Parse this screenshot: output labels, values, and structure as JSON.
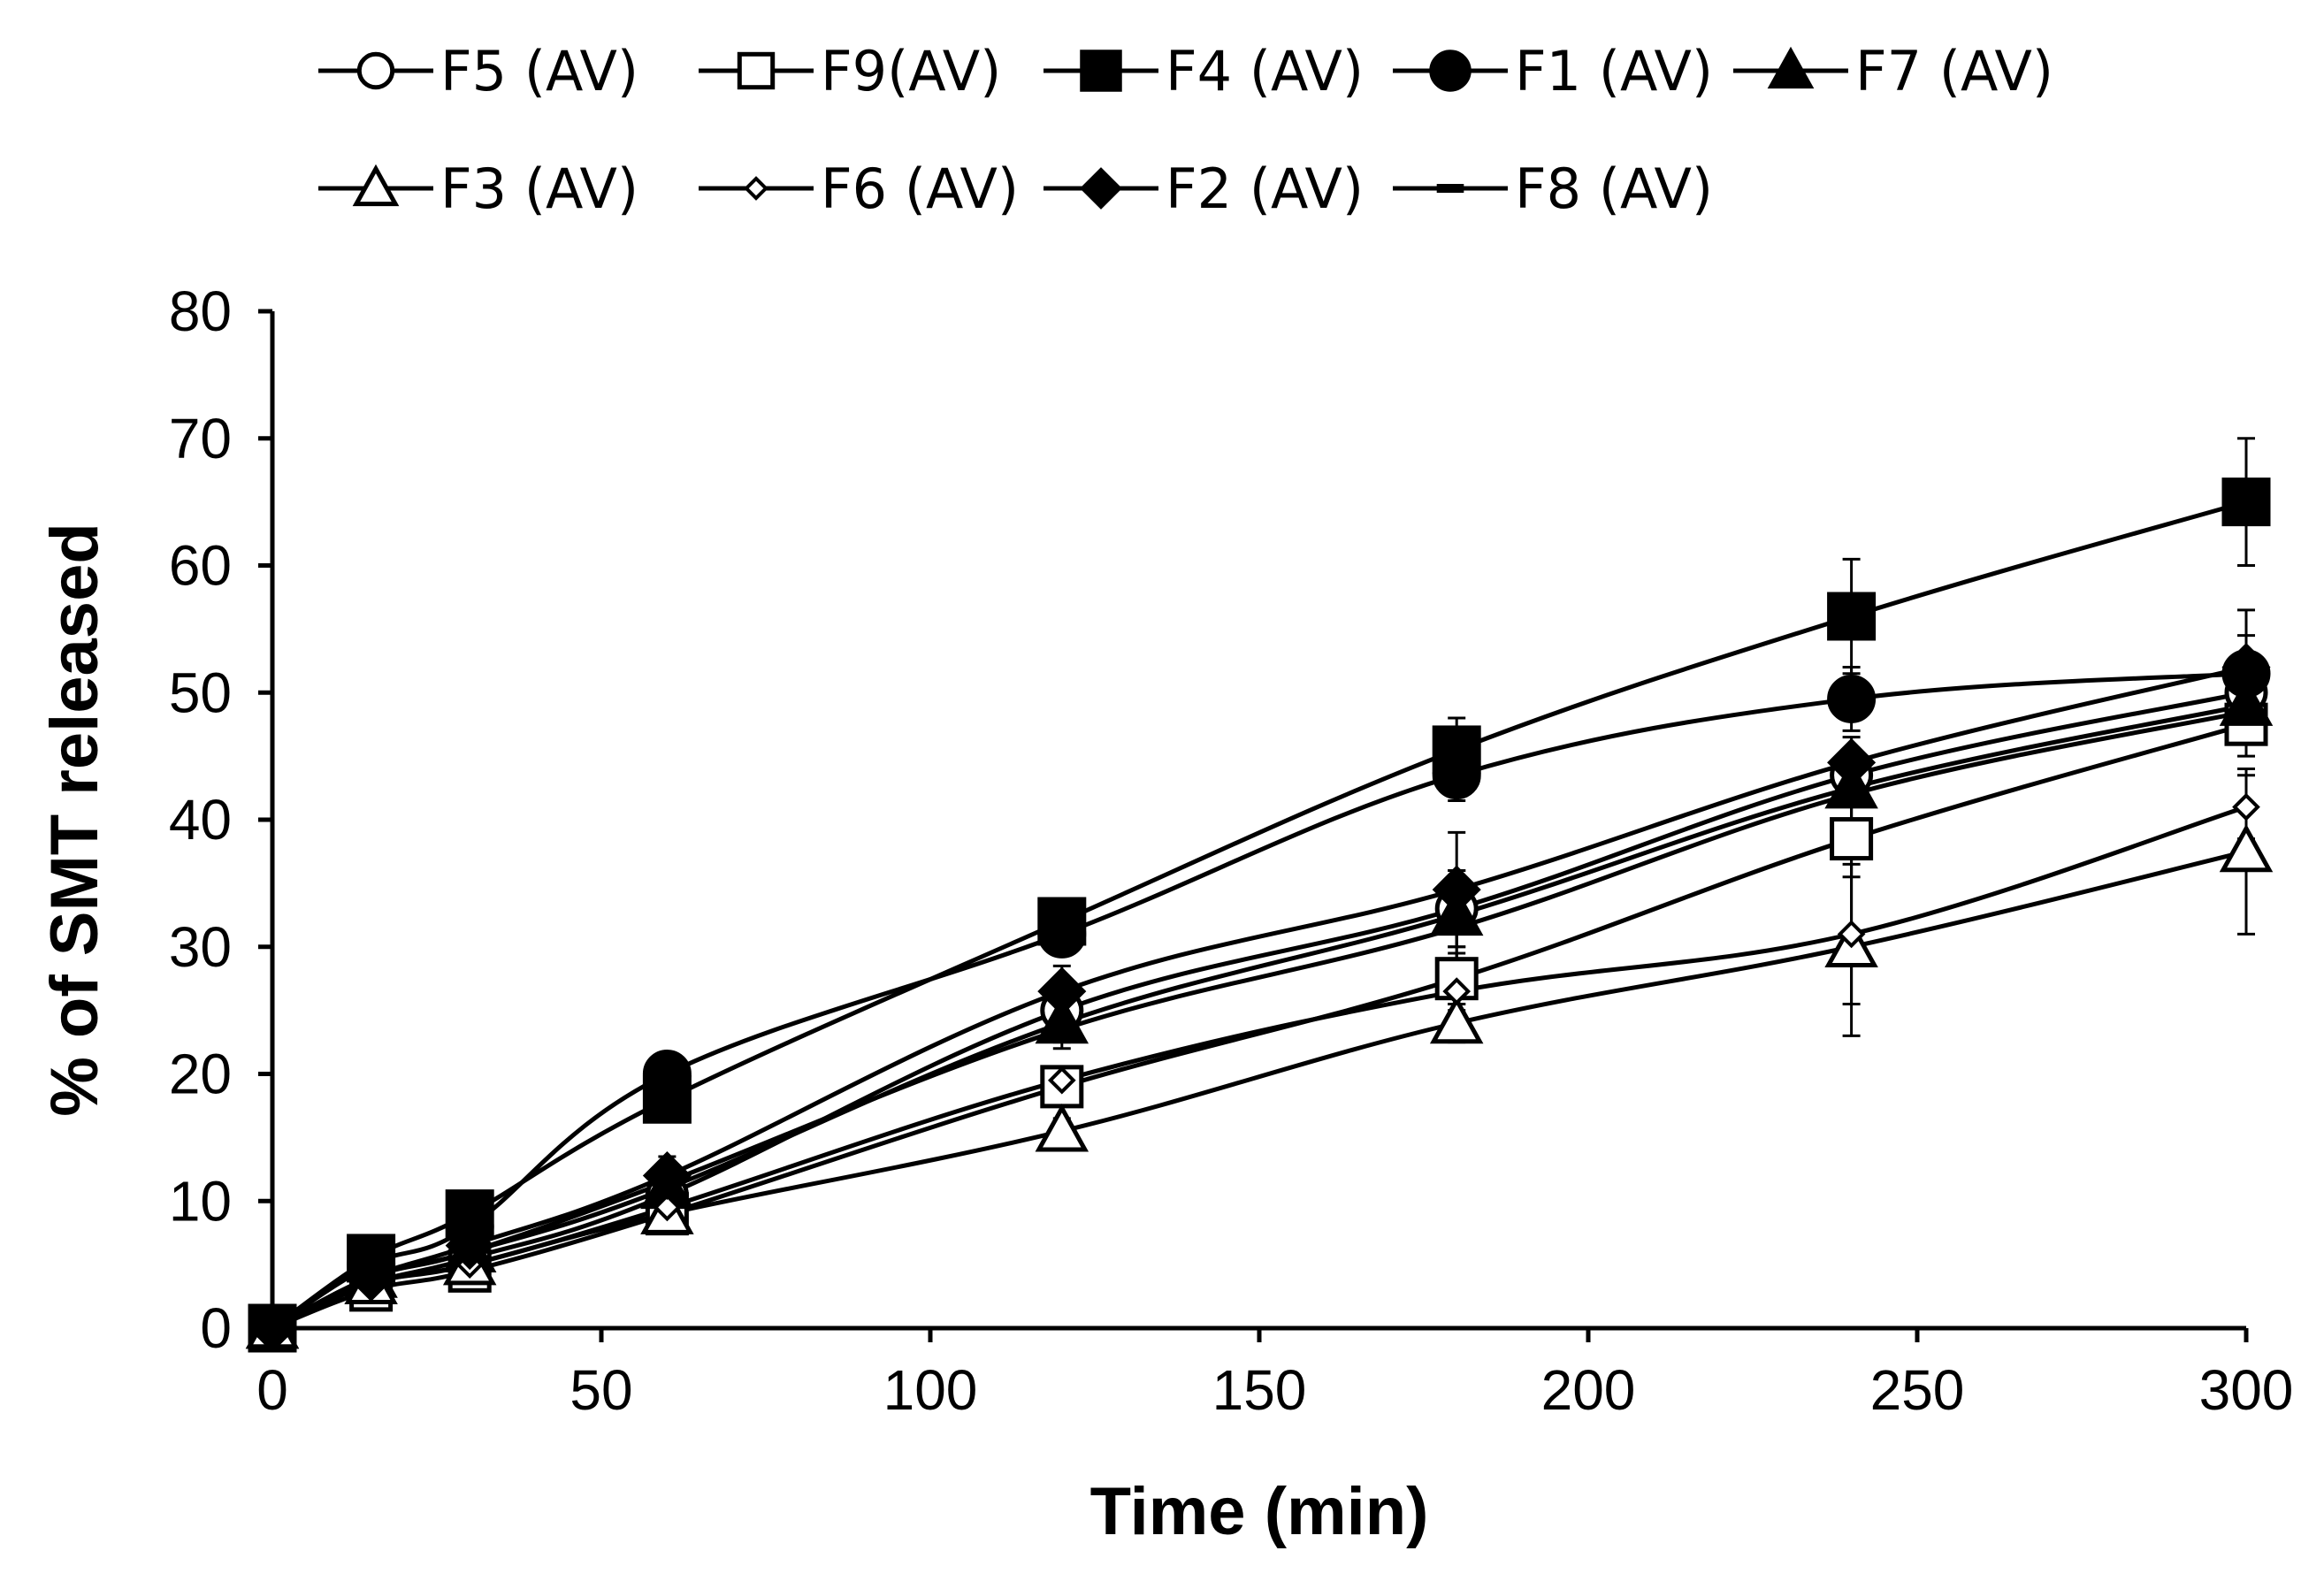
{
  "chart_data": {
    "type": "line",
    "title": "",
    "xlabel": "Time (min)",
    "ylabel": "% of SMT released",
    "xlim": [
      0,
      300
    ],
    "ylim": [
      0,
      80
    ],
    "xticks": [
      0,
      50,
      100,
      150,
      200,
      250,
      300
    ],
    "yticks": [
      0,
      10,
      20,
      30,
      40,
      50,
      60,
      70,
      80
    ],
    "xtick_labels": [
      "0",
      "50",
      "100",
      "150",
      "200",
      "250",
      "300"
    ],
    "ytick_labels": [
      "0",
      "10",
      "20",
      "30",
      "40",
      "50",
      "60",
      "70",
      "80"
    ],
    "grid": false,
    "legend_position": "top",
    "x": [
      0,
      15,
      30,
      60,
      120,
      180,
      240,
      300
    ],
    "series": [
      {
        "name": "F5 (AV)",
        "marker": "circle-open",
        "values": [
          0,
          3.5,
          5.5,
          10.5,
          25.0,
          33.0,
          43.5,
          50.0
        ],
        "errors": [
          0,
          0.5,
          0.5,
          1.0,
          1.5,
          3.0,
          2.0,
          2.0
        ]
      },
      {
        "name": "F9(AV)",
        "marker": "square-open",
        "values": [
          0,
          3.0,
          4.5,
          9.0,
          19.0,
          27.5,
          38.5,
          47.5
        ],
        "errors": [
          0,
          0.5,
          0.5,
          1.0,
          1.5,
          2.0,
          3.0,
          2.5
        ]
      },
      {
        "name": "F4 (AV)",
        "marker": "square-filled",
        "values": [
          0,
          5.5,
          9.0,
          18.0,
          32.0,
          45.5,
          56.0,
          65.0
        ],
        "errors": [
          0,
          0.5,
          1.0,
          1.5,
          1.0,
          2.5,
          4.5,
          5.0
        ]
      },
      {
        "name": "F1 (AV)",
        "marker": "circle-filled",
        "values": [
          0,
          5.0,
          8.0,
          20.0,
          31.0,
          43.5,
          49.5,
          51.5
        ],
        "errors": [
          0,
          0.5,
          1.0,
          1.0,
          1.5,
          2.0,
          2.5,
          3.0
        ]
      },
      {
        "name": "F7 (AV)",
        "marker": "triangle-filled",
        "values": [
          0,
          4.0,
          6.0,
          11.0,
          24.0,
          32.5,
          42.5,
          49.0
        ],
        "errors": [
          0,
          0.5,
          0.5,
          1.0,
          1.5,
          3.5,
          2.5,
          2.5
        ]
      },
      {
        "name": "F3 (AV)",
        "marker": "triangle-open",
        "values": [
          0,
          3.5,
          5.0,
          9.0,
          15.5,
          24.0,
          30.0,
          37.5
        ],
        "errors": [
          0,
          0.5,
          0.5,
          1.0,
          1.0,
          1.5,
          7.0,
          6.5
        ]
      },
      {
        "name": "F6 (AV)",
        "marker": "diamond-open",
        "values": [
          0,
          3.5,
          5.0,
          9.5,
          19.5,
          26.5,
          31.0,
          41.0
        ],
        "errors": [
          0,
          0.5,
          0.5,
          1.0,
          1.0,
          1.5,
          5.5,
          2.5
        ]
      },
      {
        "name": "F2 (AV)",
        "marker": "diamond-filled",
        "values": [
          0,
          4.0,
          6.5,
          12.0,
          26.5,
          34.5,
          44.5,
          52.0
        ],
        "errors": [
          0,
          0.5,
          0.5,
          1.5,
          2.0,
          4.5,
          2.0,
          4.5
        ]
      },
      {
        "name": "F8 (AV)",
        "marker": "dash",
        "values": [
          0,
          4.0,
          6.0,
          11.5,
          23.5,
          31.5,
          42.0,
          48.5
        ],
        "errors": [
          0,
          0.5,
          0.5,
          1.0,
          1.5,
          3.0,
          2.0,
          2.0
        ]
      }
    ]
  }
}
